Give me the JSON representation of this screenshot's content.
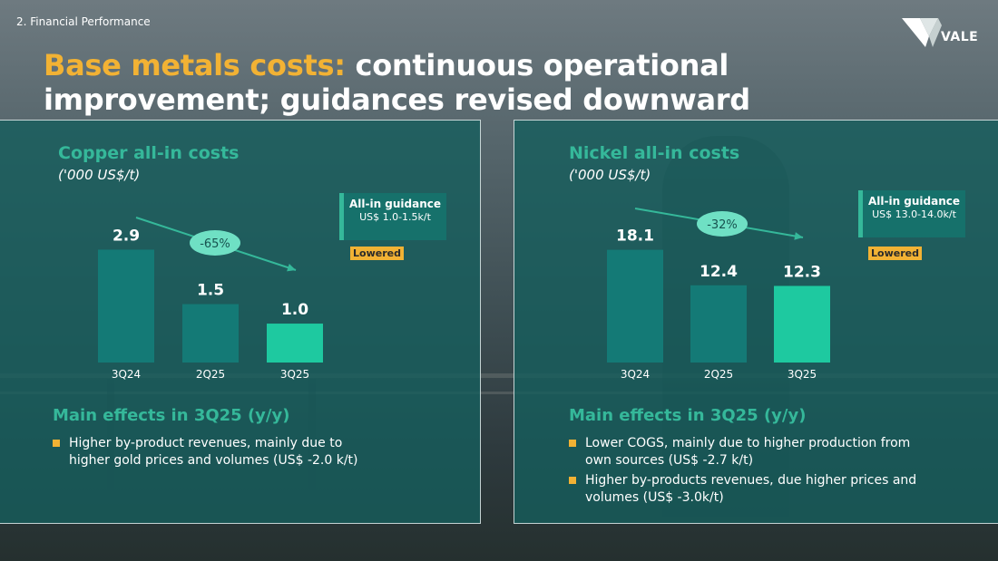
{
  "section_tag": "2. Financial Performance",
  "brand": {
    "name": "VALE"
  },
  "title": {
    "accent": "Base metals costs:",
    "rest": " continuous operational improvement; guidances revised downward"
  },
  "colors": {
    "accent_yellow": "#f2b234",
    "accent_green": "#35b89a",
    "bar_teal": "#147a76",
    "bar_highlight": "#1ec9a0",
    "panel": "#155e5d"
  },
  "copper": {
    "guidance_title": "All-in guidance",
    "guidance_range": "US$ 1.0-1.5k/t",
    "guidance_badge": "Lowered",
    "effects_title": "Main effects in 3Q25 (y/y)",
    "effects": [
      "Higher by-product revenues, mainly due to higher gold prices and volumes (US$ -2.0 k/t)"
    ]
  },
  "nickel": {
    "guidance_title": "All-in guidance",
    "guidance_range": "US$ 13.0-14.0k/t",
    "guidance_badge": "Lowered",
    "effects_title": "Main effects in 3Q25 (y/y)",
    "effects": [
      "Lower COGS, mainly due to higher production from own sources (US$ -2.7 k/t)",
      "Higher by-products revenues, due higher prices and volumes (US$ -3.0k/t)"
    ]
  },
  "chart_data": [
    {
      "type": "bar",
      "title": "Copper all-in costs",
      "ylabel": "('000 US$/t)",
      "categories": [
        "3Q24",
        "2Q25",
        "3Q25"
      ],
      "values": [
        2.9,
        1.5,
        1.0
      ],
      "value_labels": [
        "2.9",
        "1.5",
        "1.0"
      ],
      "change_label": "-65%",
      "highlight_index": 2,
      "ylim": [
        0,
        3.4
      ]
    },
    {
      "type": "bar",
      "title": "Nickel all-in costs",
      "ylabel": "('000 US$/t)",
      "categories": [
        "3Q24",
        "2Q25",
        "3Q25"
      ],
      "values": [
        18.1,
        12.4,
        12.3
      ],
      "value_labels": [
        "18.1",
        "12.4",
        "12.3"
      ],
      "change_label": "-32%",
      "highlight_index": 2,
      "ylim": [
        0,
        19.5
      ]
    }
  ]
}
